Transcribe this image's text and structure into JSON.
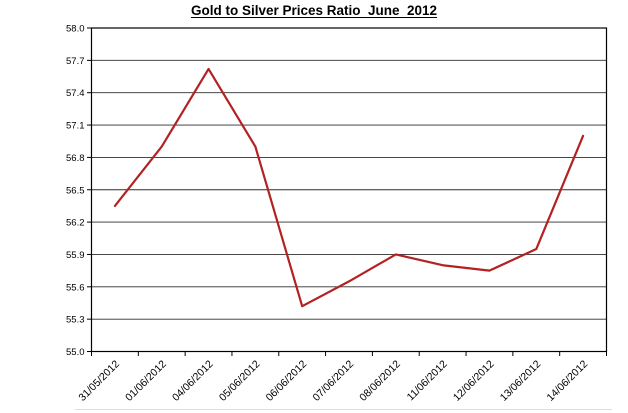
{
  "chart_data": {
    "type": "line",
    "title": "Gold to Silver Prices Ratio  June  2012",
    "categories": [
      "31/05/2012",
      "01/06/2012",
      "04/06/2012",
      "05/06/2012",
      "06/06/2012",
      "07/06/2012",
      "08/06/2012",
      "11/06/2012",
      "12/06/2012",
      "13/06/2012",
      "14/06/2012"
    ],
    "values": [
      56.35,
      56.9,
      57.62,
      56.9,
      55.42,
      55.65,
      55.9,
      55.8,
      55.75,
      55.95,
      57.0
    ],
    "xlabel": "",
    "ylabel": "",
    "ylim": [
      55.0,
      58.0
    ],
    "ytick_step": 0.3,
    "yticks": [
      "58.0",
      "57.7",
      "57.4",
      "57.1",
      "56.8",
      "56.5",
      "56.2",
      "55.9",
      "55.6",
      "55.3",
      "55.0"
    ],
    "line_color": "#b22222",
    "grid": true,
    "legend_position": "none"
  }
}
